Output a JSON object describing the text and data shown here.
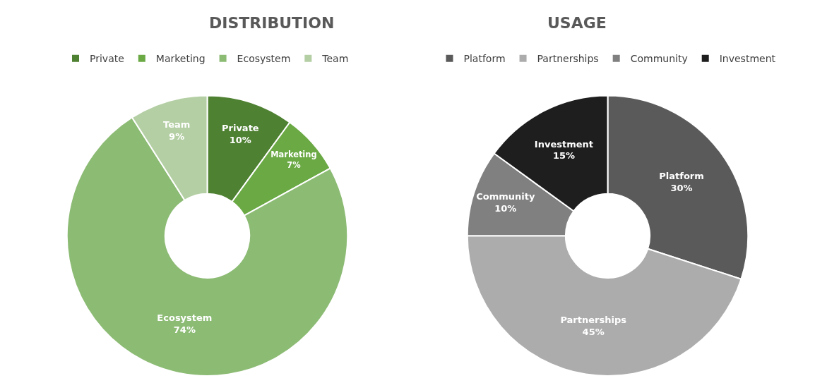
{
  "chart_data": [
    {
      "type": "donut",
      "title": "DISTRIBUTION",
      "categories": [
        "Private",
        "Marketing",
        "Ecosystem",
        "Team"
      ],
      "values": [
        10,
        7,
        74,
        9
      ],
      "value_labels": [
        "10%",
        "7%",
        "74%",
        "9%"
      ],
      "colors": [
        "#4f8132",
        "#6aa944",
        "#8cbb74",
        "#b4cfa4"
      ],
      "legend": "top"
    },
    {
      "type": "donut",
      "title": "USAGE",
      "categories": [
        "Platform",
        "Partnerships",
        "Community",
        "Investment"
      ],
      "values": [
        30,
        45,
        10,
        15
      ],
      "value_labels": [
        "30%",
        "45%",
        "10%",
        "15%"
      ],
      "colors": [
        "#5a5a5a",
        "#acacac",
        "#808080",
        "#1e1e1e"
      ],
      "legend": "top"
    }
  ]
}
